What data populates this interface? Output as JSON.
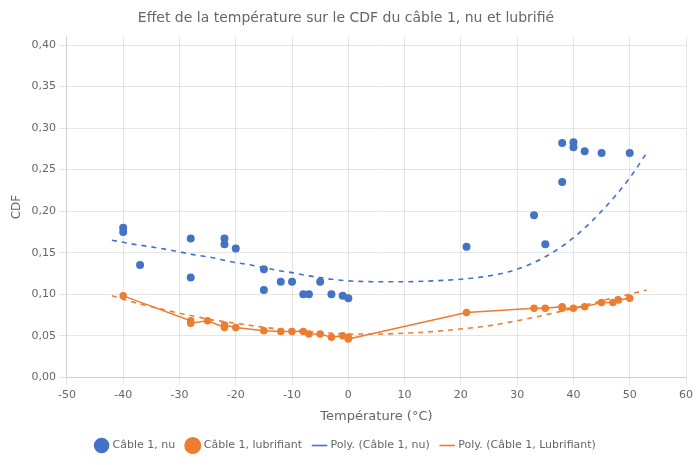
{
  "chart_data": {
    "type": "scatter",
    "title": "Effet de la température sur le CDF du câble 1, nu et lubrifié",
    "x_label": "Température (°C)",
    "y_label": "CDF",
    "xlim": [
      -50,
      60
    ],
    "ylim": [
      0.0,
      0.41
    ],
    "xticks": [
      -50,
      -40,
      -30,
      -20,
      -10,
      0,
      10,
      20,
      30,
      40,
      50,
      60
    ],
    "yticks": [
      {
        "value": 0.0,
        "label": "0,00"
      },
      {
        "value": 0.05,
        "label": "0,05"
      },
      {
        "value": 0.1,
        "label": "0,10"
      },
      {
        "value": 0.15,
        "label": "0,15"
      },
      {
        "value": 0.2,
        "label": "0,20"
      },
      {
        "value": 0.25,
        "label": "0,25"
      },
      {
        "value": 0.3,
        "label": "0,30"
      },
      {
        "value": 0.35,
        "label": "0,35"
      },
      {
        "value": 0.4,
        "label": "0,40"
      }
    ],
    "grid": true,
    "legend": "bottom",
    "series": [
      {
        "name": "Câble 1, nu",
        "color": "#4472C4",
        "marker": "circle",
        "line_style": "none",
        "x": [
          -40,
          -40,
          -37,
          -28,
          -28,
          -22,
          -22,
          -20,
          -15,
          -15,
          -12,
          -10,
          -8,
          -7,
          -5,
          -3,
          -1,
          0,
          21,
          33,
          35,
          38,
          38,
          40,
          40,
          42,
          45,
          50
        ],
        "values": [
          0.18,
          0.175,
          0.135,
          0.167,
          0.12,
          0.167,
          0.16,
          0.155,
          0.13,
          0.105,
          0.115,
          0.115,
          0.1,
          0.1,
          0.115,
          0.1,
          0.098,
          0.095,
          0.157,
          0.195,
          0.16,
          0.235,
          0.282,
          0.277,
          0.283,
          0.272,
          0.27,
          0.27
        ]
      },
      {
        "name": "Câble 1, lubrifiant",
        "color": "#ED7D31",
        "marker": "circle",
        "line_style": "solid",
        "x": [
          -40,
          -28,
          -28,
          -25,
          -22,
          -22,
          -20,
          -15,
          -12,
          -10,
          -8,
          -7,
          -5,
          -3,
          -1,
          0,
          0,
          21,
          33,
          35,
          38,
          38,
          40,
          42,
          45,
          47,
          48,
          50
        ],
        "values": [
          0.098,
          0.068,
          0.065,
          0.068,
          0.06,
          0.063,
          0.06,
          0.056,
          0.055,
          0.055,
          0.055,
          0.052,
          0.052,
          0.048,
          0.05,
          0.048,
          0.046,
          0.078,
          0.083,
          0.083,
          0.085,
          0.083,
          0.083,
          0.085,
          0.09,
          0.09,
          0.093,
          0.095
        ]
      },
      {
        "name": "Poly. (Câble 1, nu)",
        "color": "#4472C4",
        "marker": "none",
        "line_style": "dashed",
        "x": [
          -42,
          -38,
          -35,
          -30,
          -27,
          -25,
          -20,
          -18,
          -15,
          -12,
          -10,
          -7,
          -5,
          -3,
          0,
          5,
          10,
          15,
          20,
          25,
          30,
          35,
          40,
          45,
          50,
          53
        ],
        "values": [
          0.165,
          0.16,
          0.157,
          0.151,
          0.147,
          0.145,
          0.138,
          0.136,
          0.132,
          0.128,
          0.126,
          0.122,
          0.12,
          0.118,
          0.116,
          0.115,
          0.115,
          0.116,
          0.118,
          0.122,
          0.13,
          0.145,
          0.168,
          0.2,
          0.24,
          0.27
        ]
      },
      {
        "name": "Poly. (Câble 1, Lubrifiant)",
        "color": "#ED7D31",
        "marker": "none",
        "line_style": "dashed",
        "x": [
          -42,
          -38,
          -35,
          -30,
          -27,
          -25,
          -20,
          -18,
          -15,
          -12,
          -10,
          -7,
          -5,
          -3,
          0,
          5,
          10,
          15,
          20,
          25,
          30,
          35,
          40,
          45,
          50,
          53
        ],
        "values": [
          0.098,
          0.09,
          0.085,
          0.077,
          0.073,
          0.07,
          0.065,
          0.063,
          0.06,
          0.058,
          0.057,
          0.055,
          0.054,
          0.053,
          0.052,
          0.052,
          0.053,
          0.055,
          0.058,
          0.062,
          0.068,
          0.075,
          0.083,
          0.092,
          0.1,
          0.105
        ]
      }
    ]
  }
}
